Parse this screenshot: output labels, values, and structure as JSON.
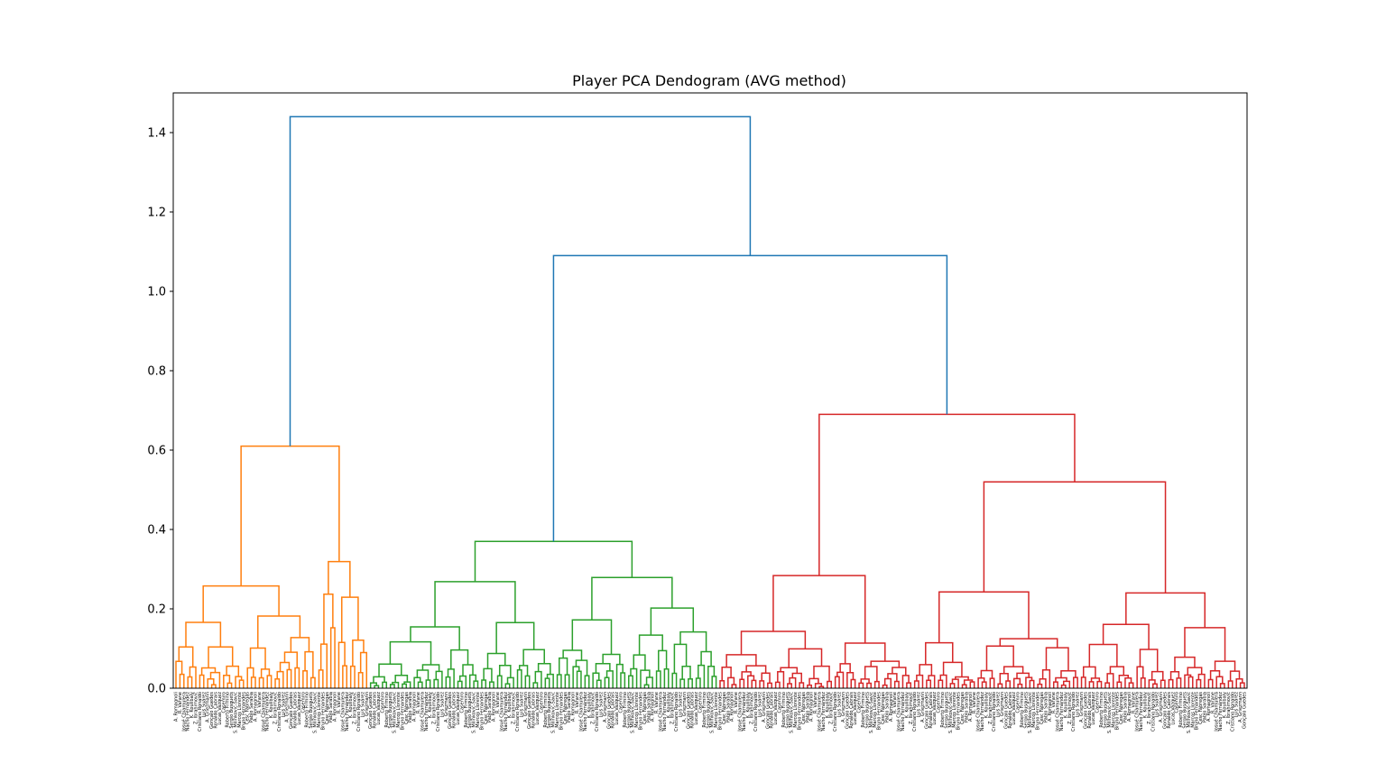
{
  "chart_data": {
    "type": "dendrogram",
    "title": "Player PCA Dendogram (AVG method)",
    "xlabel": "",
    "ylabel": "",
    "ylim": [
      0,
      1.5
    ],
    "yticks": [
      0.0,
      0.2,
      0.4,
      0.6,
      0.8,
      1.0,
      1.2,
      1.4
    ],
    "ytick_labels": [
      "0.0",
      "0.2",
      "0.4",
      "0.6",
      "0.8",
      "1.0",
      "1.2",
      "1.4"
    ],
    "grid": false,
    "leaf_count": 270,
    "cluster_colors": {
      "orange": "#ff7f0e",
      "green": "#2ca02c",
      "red": "#d62728",
      "link": "#1f77b4"
    },
    "top_merges": [
      {
        "name": "root",
        "height": 1.44,
        "color": "#1f77b4"
      },
      {
        "name": "green-red",
        "height": 1.09,
        "color": "#1f77b4"
      },
      {
        "name": "red-cluster",
        "height": 0.69,
        "color": "#d62728"
      },
      {
        "name": "orange-cluster",
        "height": 0.61,
        "color": "#ff7f0e"
      },
      {
        "name": "red-right",
        "height": 0.52,
        "color": "#d62728"
      },
      {
        "name": "green-cluster",
        "height": 0.37,
        "color": "#2ca02c"
      }
    ],
    "leaf_labels_sample": [
      "A. Romagnoli",
      "R. Varane",
      "Josué Chiamulera",
      "Nacho Fernández",
      "K. Koulibaly",
      "Z. Ibrahimović",
      "Cristiano Ronaldo",
      "Luis Suárez",
      "A. Griezmann",
      "Gonçalo Guedes",
      "Ronaldo Cabrais",
      "Lucas Vázquez",
      "Casemiro",
      "Roberto Firmino",
      "Sergio Busquets",
      "S. Milinković-Savić",
      "Marcos Llorente",
      "Bruno Fernandes",
      "Cesc Fàbregas",
      "Pablo Sarabia"
    ]
  }
}
